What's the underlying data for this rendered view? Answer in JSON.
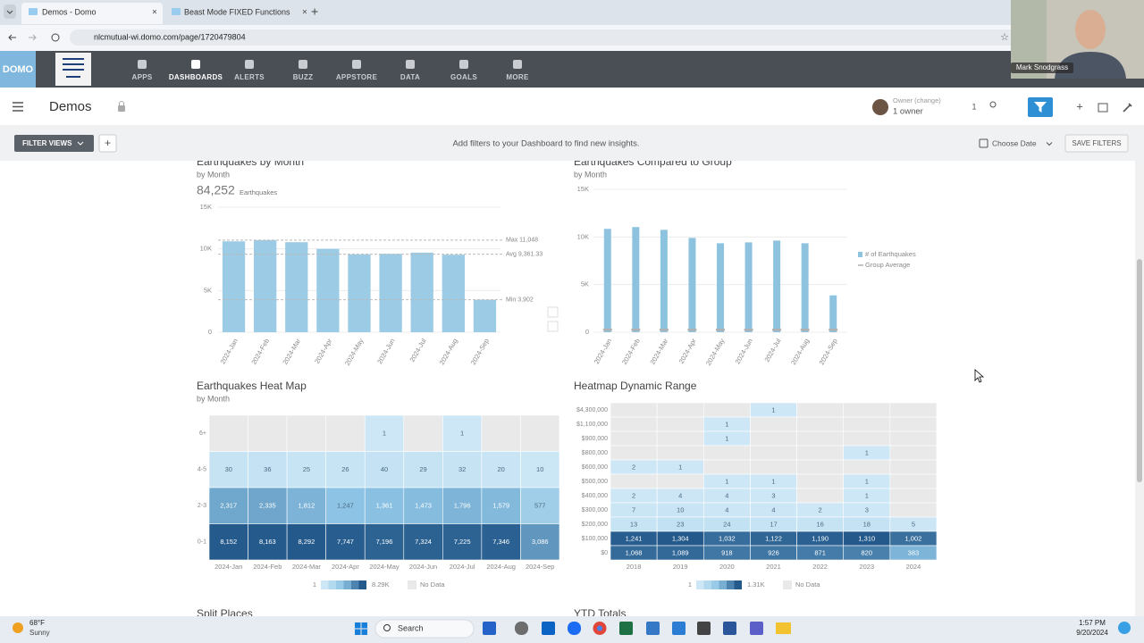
{
  "browser": {
    "tabs": [
      "Demos - Domo",
      "Beast Mode FIXED Functions"
    ],
    "url": "nlcmutual-wi.domo.com/page/1720479804"
  },
  "nav": [
    "APPS",
    "DASHBOARDS",
    "ALERTS",
    "BUZZ",
    "APPSTORE",
    "DATA",
    "GOALS",
    "MORE"
  ],
  "dashboard": {
    "title": "Demos",
    "owner_label": "Owner (change)",
    "owner_count": "1 owner",
    "badge": "1"
  },
  "filter_bar": {
    "button": "FILTER VIEWS",
    "message": "Add filters to your Dashboard to find new insights.",
    "date": "Choose Date",
    "save": "SAVE FILTERS"
  },
  "chart_data": [
    {
      "type": "bar",
      "title": "Earthquakes by Month",
      "subtitle": "by Month",
      "summary_value": "84,252",
      "summary_label": "Earthquakes",
      "categories": [
        "2024-Jan",
        "2024-Feb",
        "2024-Mar",
        "2024-Apr",
        "2024-May",
        "2024-Jun",
        "2024-Jul",
        "2024-Aug",
        "2024-Sep"
      ],
      "values": [
        10902,
        11048,
        10800,
        10000,
        9350,
        9400,
        9550,
        9300,
        3902
      ],
      "color": "#9ccbe5",
      "reference_lines": [
        {
          "label": "Max 11,048",
          "value": 11048
        },
        {
          "label": "Avg 9,361.33",
          "value": 9361.33
        },
        {
          "label": "Min 3,902",
          "value": 3902
        }
      ],
      "ylim": [
        0,
        15000
      ],
      "yticks": [
        0,
        {
          "value": 5000,
          "label": "5K"
        },
        {
          "value": 10000,
          "label": "10K"
        },
        {
          "value": 15000,
          "label": "15K"
        }
      ],
      "grid": true
    },
    {
      "type": "bar",
      "title": "Earthquakes Compared to Group",
      "subtitle": "by Month",
      "categories": [
        "2024-Jan",
        "2024-Feb",
        "2024-Mar",
        "2024-Apr",
        "2024-May",
        "2024-Jun",
        "2024-Jul",
        "2024-Aug",
        "2024-Sep"
      ],
      "series": [
        {
          "name": "# of Earthquakes",
          "color": "#8ec3e0",
          "mark": "bar",
          "values": [
            10850,
            11040,
            10750,
            9900,
            9340,
            9430,
            9620,
            9340,
            3870
          ]
        },
        {
          "name": "Group Average",
          "color": "#b0b0b0",
          "mark": "dash",
          "values": [
            250,
            250,
            250,
            250,
            250,
            250,
            250,
            250,
            250
          ]
        }
      ],
      "ylim": [
        0,
        15000
      ],
      "yticks": [
        0,
        {
          "value": 5000,
          "label": "5K"
        },
        {
          "value": 10000,
          "label": "10K"
        },
        {
          "value": 15000,
          "label": "15K"
        }
      ],
      "grid": true
    },
    {
      "type": "heatmap",
      "title": "Earthquakes Heat Map",
      "subtitle": "by Month",
      "x": [
        "2024-Jan",
        "2024-Feb",
        "2024-Mar",
        "2024-Apr",
        "2024-May",
        "2024-Jun",
        "2024-Jul",
        "2024-Aug",
        "2024-Sep"
      ],
      "y": [
        "6+",
        "4-5",
        "2-3",
        "0-1"
      ],
      "values": [
        [
          null,
          null,
          null,
          null,
          1,
          null,
          1,
          null,
          null
        ],
        [
          30,
          36,
          25,
          26,
          40,
          29,
          32,
          20,
          10
        ],
        [
          2317,
          2335,
          1812,
          1247,
          1361,
          1473,
          1796,
          1579,
          577
        ],
        [
          8152,
          8163,
          8292,
          7747,
          7196,
          7324,
          7225,
          7346,
          3086
        ]
      ],
      "value_labels": [
        [
          null,
          null,
          null,
          null,
          "1",
          null,
          "1",
          null,
          null
        ],
        [
          "30",
          "36",
          "25",
          "26",
          "40",
          "29",
          "32",
          "20",
          "10"
        ],
        [
          "2,317",
          "2,335",
          "1,812",
          "1,247",
          "1,361",
          "1,473",
          "1,796",
          "1,579",
          "577"
        ],
        [
          "8,152",
          "8,163",
          "8,292",
          "7,747",
          "7,196",
          "7,324",
          "7,225",
          "7,346",
          "3,086"
        ]
      ],
      "legend": {
        "min": 1,
        "max": {
          "value": 8290,
          "label": "8.29K"
        },
        "no_data": "No Data"
      },
      "colors": [
        "#cde7f6",
        "#8cc3e4",
        "#23598b"
      ],
      "empty_color": "#e9e9e9"
    },
    {
      "type": "heatmap",
      "title": "Heatmap Dynamic Range",
      "x": [
        "2018",
        "2019",
        "2020",
        "2021",
        "2022",
        "2023",
        "2024"
      ],
      "y": [
        "$4,300,000",
        "$1,100,000",
        "$900,000",
        "$800,000",
        "$600,000",
        "$500,000",
        "$400,000",
        "$300,000",
        "$200,000",
        "$100,000",
        "$0"
      ],
      "values": [
        [
          null,
          null,
          null,
          1,
          null,
          null,
          null
        ],
        [
          null,
          null,
          1,
          null,
          null,
          null,
          null
        ],
        [
          null,
          null,
          1,
          null,
          null,
          null,
          null
        ],
        [
          null,
          null,
          null,
          null,
          null,
          1,
          null
        ],
        [
          2,
          1,
          null,
          null,
          null,
          null,
          null
        ],
        [
          null,
          null,
          1,
          1,
          null,
          1,
          null
        ],
        [
          2,
          4,
          4,
          3,
          null,
          1,
          null
        ],
        [
          7,
          10,
          4,
          4,
          2,
          3,
          null
        ],
        [
          13,
          23,
          24,
          17,
          16,
          18,
          5
        ],
        [
          1241,
          1304,
          1032,
          1122,
          1190,
          1310,
          1002
        ],
        [
          1068,
          1089,
          918,
          926,
          871,
          820,
          383
        ]
      ],
      "value_labels": [
        [
          null,
          null,
          null,
          "1",
          null,
          null,
          null
        ],
        [
          null,
          null,
          "1",
          null,
          null,
          null,
          null
        ],
        [
          null,
          null,
          "1",
          null,
          null,
          null,
          null
        ],
        [
          null,
          null,
          null,
          null,
          null,
          "1",
          null
        ],
        [
          "2",
          "1",
          null,
          null,
          null,
          null,
          null
        ],
        [
          null,
          null,
          "1",
          "1",
          null,
          "1",
          null
        ],
        [
          "2",
          "4",
          "4",
          "3",
          null,
          "1",
          null
        ],
        [
          "7",
          "10",
          "4",
          "4",
          "2",
          "3",
          null
        ],
        [
          "13",
          "23",
          "24",
          "17",
          "16",
          "18",
          "5"
        ],
        [
          "1,241",
          "1,304",
          "1,032",
          "1,122",
          "1,190",
          "1,310",
          "1,002"
        ],
        [
          "1,068",
          "1,089",
          "918",
          "926",
          "871",
          "820",
          "383"
        ]
      ],
      "legend": {
        "min": 1,
        "max": {
          "value": 1310,
          "label": "1.31K"
        },
        "no_data": "No Data"
      },
      "colors": [
        "#cde7f6",
        "#8cc3e4",
        "#23598b"
      ],
      "empty_color": "#e9e9e9"
    }
  ],
  "more_cards": [
    "Split Places",
    "YTD Totals"
  ],
  "webcam": {
    "name": "Mark Snodgrass"
  },
  "taskbar": {
    "temperature": "68°F",
    "weather": "Sunny",
    "search": "Search",
    "time": "1:57 PM",
    "date": "9/20/2024"
  }
}
